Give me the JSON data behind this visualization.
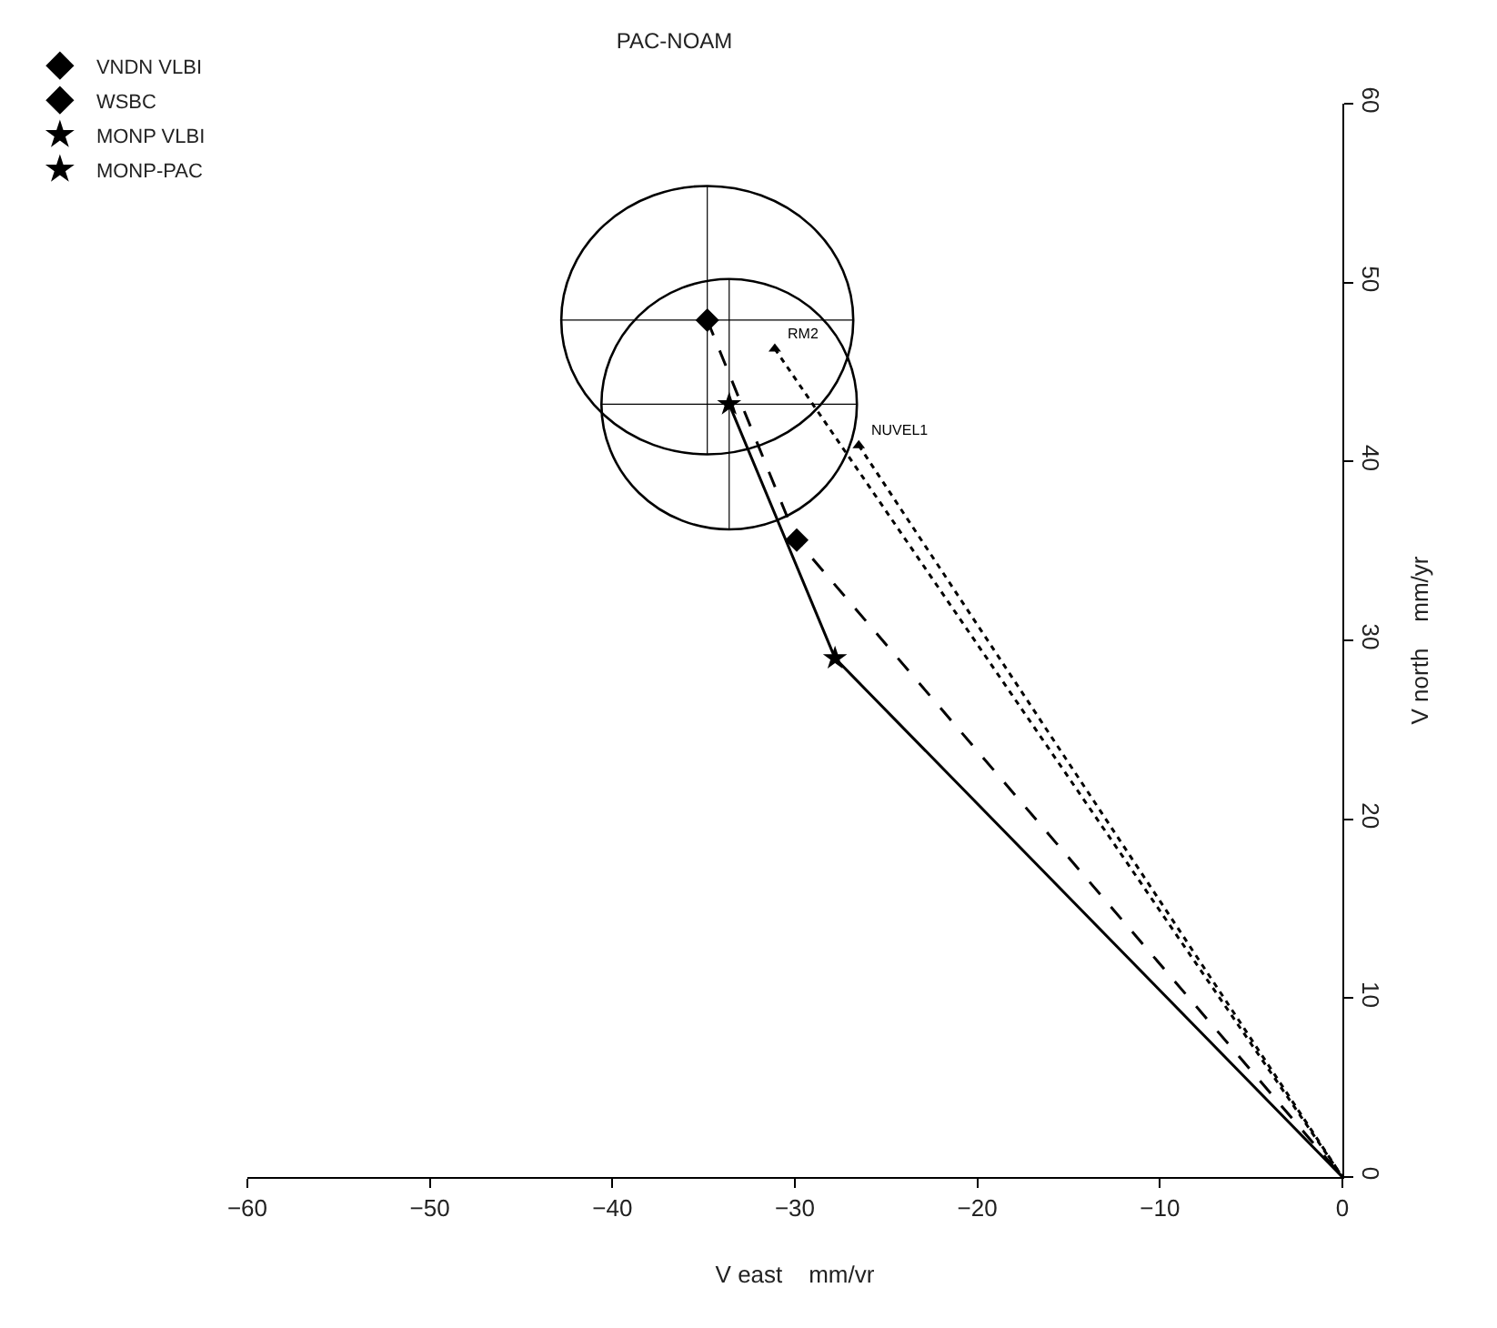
{
  "chart_data": {
    "type": "line",
    "title": "PAC-NOAM",
    "xlabel": "V east    mm/vr",
    "ylabel": "V north    mm/yr",
    "xlim": [
      -60,
      0
    ],
    "ylim": [
      0,
      60
    ],
    "xticks": [
      -60,
      -50,
      -40,
      -30,
      -20,
      -10,
      0
    ],
    "yticks": [
      0,
      10,
      20,
      30,
      40,
      50,
      60
    ],
    "grid": false,
    "legend": "top left",
    "annotations": [
      {
        "text": "RM2",
        "x": -31.1,
        "y": 46.3
      },
      {
        "text": "NUVEL1",
        "x": -26.5,
        "y": 40.9
      }
    ],
    "series": [
      {
        "x": [
          -34.8,
          -29.9,
          0
        ],
        "values": [
          47.9,
          35.6,
          0
        ],
        "line_style": "dashed",
        "marker": "none",
        "color": "#000000"
      },
      {
        "x": [
          -33.6,
          -27.8,
          0
        ],
        "values": [
          43.2,
          29.0,
          0
        ],
        "line_style": "solid",
        "marker": "none",
        "color": "#000000"
      },
      {
        "x": [
          -31.1,
          0
        ],
        "values": [
          46.3,
          0
        ],
        "line_style": "dotted",
        "marker": "none",
        "color": "#000000"
      },
      {
        "x": [
          -26.5,
          0
        ],
        "values": [
          40.9,
          0
        ],
        "line_style": "dotted",
        "marker": "none",
        "color": "#000000"
      },
      {
        "type": "scatter",
        "x": [
          -31.1,
          -26.5
        ],
        "values": [
          46.3,
          40.9
        ],
        "marker": "triangle",
        "color": "#000000"
      },
      {
        "type": "scatter",
        "name": "VNDN VLBI",
        "x": [
          -34.8
        ],
        "values": [
          47.9
        ],
        "marker": "diamond",
        "color": "#000000",
        "xerrors": [
          8.0
        ],
        "errors": [
          7.5
        ]
      },
      {
        "type": "scatter",
        "name": "WSBC",
        "x": [
          -29.9
        ],
        "values": [
          35.6
        ],
        "marker": "diamond",
        "color": "#000000"
      },
      {
        "type": "scatter",
        "name": "MONP VLBI",
        "x": [
          -33.6
        ],
        "values": [
          43.2
        ],
        "marker": "star",
        "color": "#000000",
        "xerrors": [
          7.0
        ],
        "errors": [
          7.0
        ]
      },
      {
        "type": "scatter",
        "name": "MONP-PAC",
        "x": [
          -27.8
        ],
        "values": [
          29.0
        ],
        "marker": "star",
        "color": "#000000"
      }
    ]
  }
}
